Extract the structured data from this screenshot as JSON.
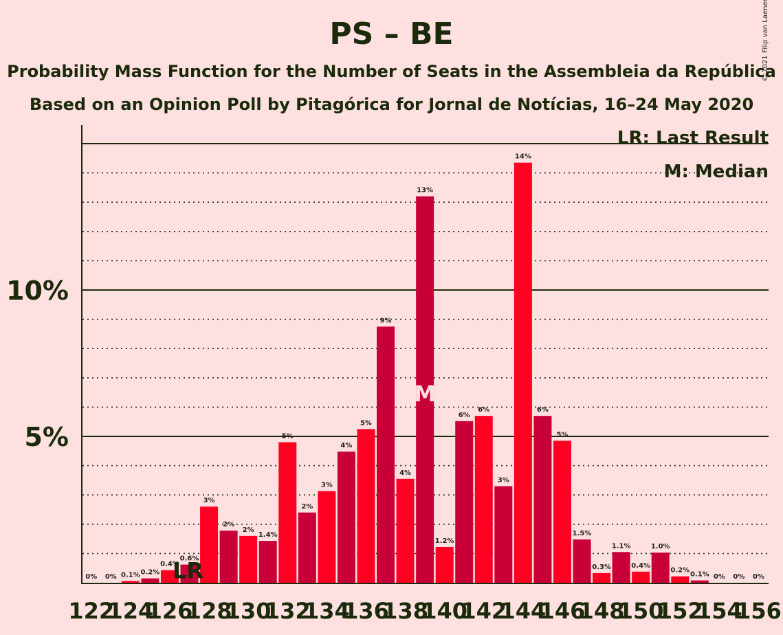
{
  "title": "PS – BE",
  "subtitle_1": "Probability Mass Function for the Number of Seats in the Assembleia da República",
  "subtitle_2": "Based on an Opinion Poll by Pitagórica for Jornal de Notícias, 16–24 May 2020",
  "copyright": "© 2021 Filip van Laenen",
  "legend": {
    "last_result": "LR: Last Result",
    "median": "M: Median"
  },
  "colors": {
    "background": "#ffe0e0",
    "bar_a": "#ff0022",
    "bar_b": "#c90038",
    "text": "#1a2a0a",
    "median_marker": "#ffe0e0"
  },
  "chart_data": {
    "type": "bar",
    "categories": [
      "122",
      "123",
      "124",
      "125",
      "126",
      "127",
      "128",
      "129",
      "130",
      "131",
      "132",
      "133",
      "134",
      "135",
      "136",
      "137",
      "138",
      "139",
      "140",
      "141",
      "142",
      "143",
      "144",
      "145",
      "146",
      "147",
      "148",
      "149",
      "150",
      "151",
      "152",
      "153",
      "154",
      "155",
      "156"
    ],
    "values": [
      0.0,
      0.0,
      0.06,
      0.15,
      0.43,
      0.62,
      2.6,
      1.78,
      1.6,
      1.43,
      4.8,
      2.4,
      3.13,
      4.48,
      5.25,
      8.75,
      3.55,
      13.2,
      1.22,
      5.52,
      5.7,
      3.3,
      14.35,
      5.7,
      4.85,
      1.48,
      0.33,
      1.05,
      0.38,
      1.03,
      0.22,
      0.08,
      0.0,
      0.0,
      0.0
    ],
    "data_labels": [
      "0%",
      "0%",
      "0.1%",
      "0.2%",
      "0.4%",
      "0.6%",
      "3%",
      "2%",
      "2%",
      "1.4%",
      "5%",
      "2%",
      "3%",
      "4%",
      "5%",
      "9%",
      "4%",
      "13%",
      "1.2%",
      "6%",
      "6%",
      "3%",
      "14%",
      "6%",
      "5%",
      "1.5%",
      "0.3%",
      "1.1%",
      "0.4%",
      "1.0%",
      "0.2%",
      "0.1%",
      "0%",
      "0%",
      "0%"
    ],
    "x_tick_labels": [
      "122",
      "124",
      "126",
      "128",
      "130",
      "132",
      "134",
      "136",
      "138",
      "140",
      "142",
      "144",
      "146",
      "148",
      "150",
      "152",
      "154",
      "156"
    ],
    "y_tick_labels": [
      {
        "value": 5,
        "label": "5%"
      },
      {
        "value": 10,
        "label": "10%"
      }
    ],
    "ylim": [
      0,
      15.6
    ],
    "last_result": {
      "seats": "127",
      "label": "LR"
    },
    "median": {
      "seats": "139",
      "label": "M"
    },
    "grid": "dotted every 1%, solid at 5% and 10%",
    "legend_position": "top-right"
  }
}
